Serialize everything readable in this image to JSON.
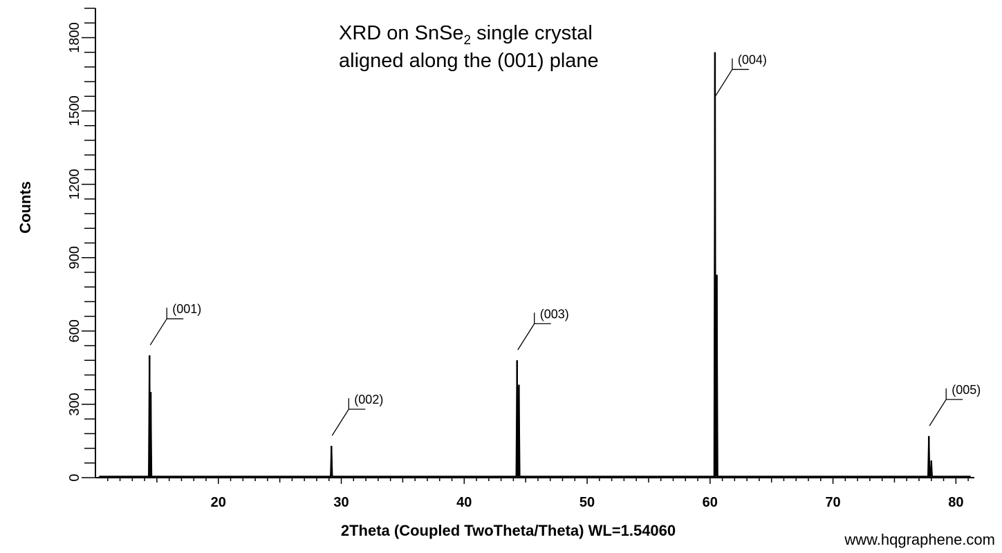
{
  "chart_data": {
    "type": "line",
    "title_line1_prefix": "XRD on SnSe",
    "title_line1_subscript": "2",
    "title_line1_suffix": " single crystal",
    "title_line2": "aligned along the (001) plane",
    "xlabel": "2Theta (Coupled TwoTheta/Theta) WL=1.54060",
    "ylabel": "Counts",
    "xlim": [
      10,
      81.5
    ],
    "ylim": [
      0,
      1920
    ],
    "xticks": [
      20,
      30,
      40,
      50,
      60,
      70,
      80
    ],
    "yticks": [
      0,
      300,
      600,
      900,
      1200,
      1500,
      1800
    ],
    "grid": false,
    "series": [
      {
        "peaks": [
          {
            "x": 14.4,
            "y": 500
          },
          {
            "x": 14.5,
            "y": 350
          },
          {
            "x": 29.2,
            "y": 130
          },
          {
            "x": 44.3,
            "y": 480
          },
          {
            "x": 44.45,
            "y": 380
          },
          {
            "x": 60.4,
            "y": 1740
          },
          {
            "x": 60.55,
            "y": 830
          },
          {
            "x": 77.8,
            "y": 170
          },
          {
            "x": 78.0,
            "y": 70
          }
        ],
        "baseline": 5
      }
    ],
    "annotations": [
      {
        "text": "(001)",
        "x": 14.4,
        "y": 500
      },
      {
        "text": "(002)",
        "x": 29.2,
        "y": 130
      },
      {
        "text": "(003)",
        "x": 44.3,
        "y": 480
      },
      {
        "text": "(004)",
        "x": 60.4,
        "y": 1520
      },
      {
        "text": "(005)",
        "x": 77.8,
        "y": 170
      }
    ]
  },
  "watermark": "www.hqgraphene.com"
}
